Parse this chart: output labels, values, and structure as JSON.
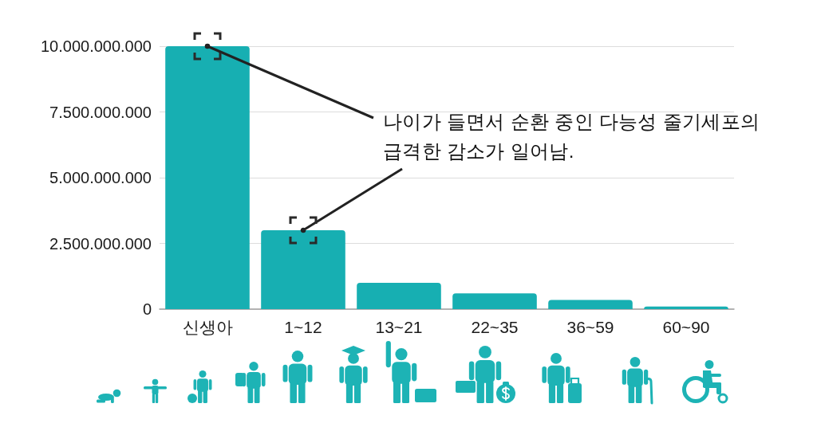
{
  "chart_data": {
    "type": "bar",
    "categories": [
      "신생아",
      "1~12",
      "13~21",
      "22~35",
      "36~59",
      "60~90"
    ],
    "values": [
      10000000000,
      3000000000,
      1000000000,
      600000000,
      350000000,
      100000000
    ],
    "color": "#17afb2",
    "ylim": [
      0,
      10000000000
    ],
    "yticks": [
      0,
      {
        "value": 2500000000,
        "label": "2.500.000.000"
      },
      {
        "value": 5000000000,
        "label": "5.000.000.000"
      },
      {
        "value": 7500000000,
        "label": "7.500.000.000"
      },
      {
        "value": 10000000000,
        "label": "10.000.000.000"
      }
    ],
    "grid": "y",
    "annotations": [
      {
        "text": "나이가 들면서 순환 중인 다능성 줄기세포의",
        "x": "신생아",
        "y": 10000000000
      },
      {
        "text": "급격한 감소가 일어남.",
        "x": "1~12",
        "y": 3000000000
      }
    ]
  }
}
